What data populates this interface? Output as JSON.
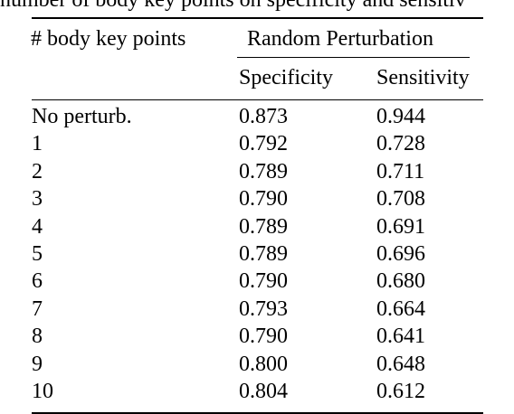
{
  "caption": "number of body key points on specificity and sensitiv",
  "table": {
    "header": {
      "keypoints": "# body key points",
      "group": "Random Perturbation",
      "specificity": "Specificity",
      "sensitivity": "Sensitivity"
    },
    "rows": [
      {
        "label": "No perturb.",
        "specificity": "0.873",
        "sensitivity": "0.944"
      },
      {
        "label": "1",
        "specificity": "0.792",
        "sensitivity": "0.728"
      },
      {
        "label": "2",
        "specificity": "0.789",
        "sensitivity": "0.711"
      },
      {
        "label": "3",
        "specificity": "0.790",
        "sensitivity": "0.708"
      },
      {
        "label": "4",
        "specificity": "0.789",
        "sensitivity": "0.691"
      },
      {
        "label": "5",
        "specificity": "0.789",
        "sensitivity": "0.696"
      },
      {
        "label": "6",
        "specificity": "0.790",
        "sensitivity": "0.680"
      },
      {
        "label": "7",
        "specificity": "0.793",
        "sensitivity": "0.664"
      },
      {
        "label": "8",
        "specificity": "0.790",
        "sensitivity": "0.641"
      },
      {
        "label": "9",
        "specificity": "0.800",
        "sensitivity": "0.648"
      },
      {
        "label": "10",
        "specificity": "0.804",
        "sensitivity": "0.612"
      }
    ]
  }
}
